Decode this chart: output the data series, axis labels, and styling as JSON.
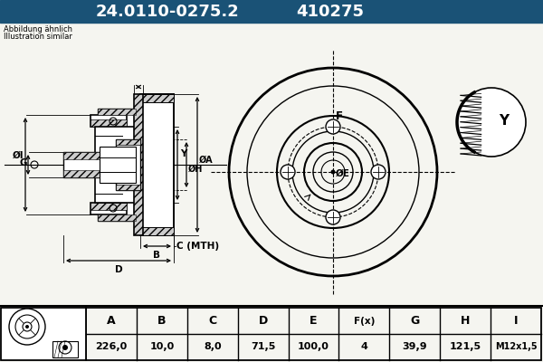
{
  "title_part": "24.0110-0275.2",
  "title_num": "410275",
  "subtitle1": "Abbildung ähnlich",
  "subtitle2": "Illustration similar",
  "header_bg": "#1a5276",
  "header_text_color": "#ffffff",
  "bg_color": "#f5f5f0",
  "table_headers": [
    "A",
    "B",
    "C",
    "D",
    "E",
    "F(x)",
    "G",
    "H",
    "I"
  ],
  "table_values": [
    "226,0",
    "10,0",
    "8,0",
    "71,5",
    "100,0",
    "4",
    "39,9",
    "121,5",
    "M12x1,5"
  ],
  "line_color": "#000000"
}
